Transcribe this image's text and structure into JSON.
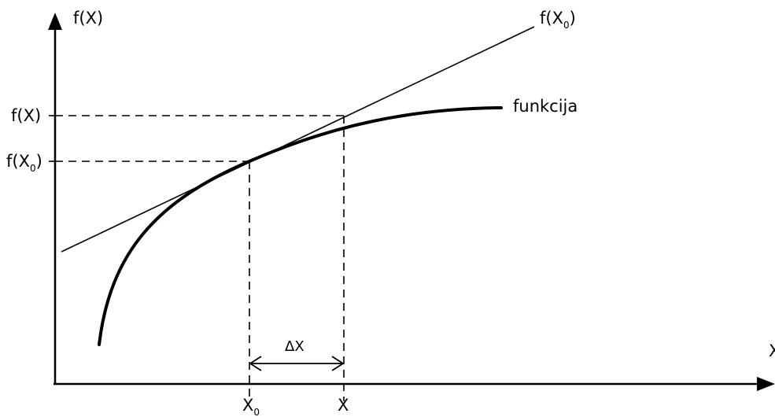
{
  "diagram": {
    "y_axis_label": "f(X)",
    "x_axis_label": "X",
    "tangent_label": "f(X",
    "tangent_label_sub": "0",
    "tangent_label_close": ")",
    "curve_label": "funkcija",
    "fx_label": "f(X)",
    "fx0_label": "f(X",
    "fx0_label_sub": "0",
    "fx0_label_close": ")",
    "x0_label": "X",
    "x0_label_sub": "0",
    "x_label": "X",
    "delta_label": "ΔX",
    "stroke_color": "#000000"
  }
}
